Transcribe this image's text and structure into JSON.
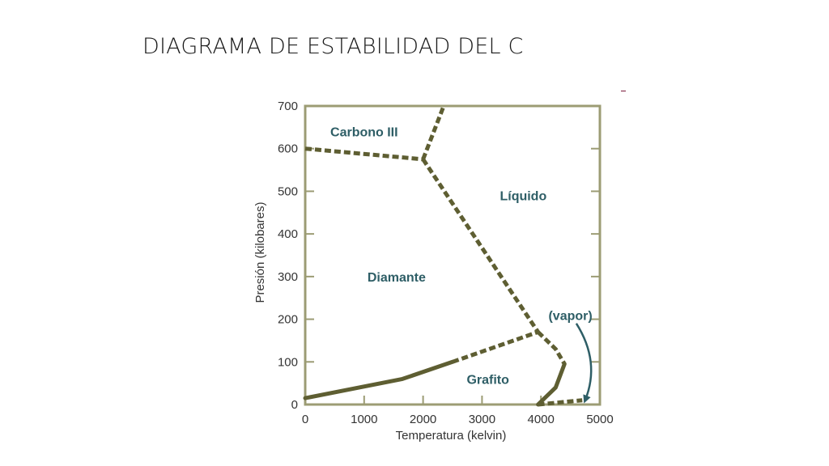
{
  "slide": {
    "title": "DIAGRAMA DE ESTABILIDAD DEL C"
  },
  "chart_data": {
    "type": "phase-diagram",
    "xlabel": "Temperatura (kelvin)",
    "ylabel": "Presión (kilobares)",
    "xlim": [
      0,
      5000
    ],
    "ylim": [
      0,
      700
    ],
    "x_ticks": [
      "0",
      "1000",
      "2000",
      "3000",
      "4000",
      "5000"
    ],
    "y_ticks": [
      "0",
      "100",
      "200",
      "300",
      "400",
      "500",
      "600",
      "700"
    ],
    "regions": [
      {
        "name": "Carbono III",
        "x": 1000,
        "y": 640
      },
      {
        "name": "Líquido",
        "x": 3700,
        "y": 490
      },
      {
        "name": "Diamante",
        "x": 1550,
        "y": 300
      },
      {
        "name": "(vapor)",
        "x": 4500,
        "y": 210
      },
      {
        "name": "Grafito",
        "x": 3100,
        "y": 60
      }
    ],
    "boundaries": [
      {
        "style": "solid",
        "points": [
          [
            0,
            15
          ],
          [
            1650,
            60
          ],
          [
            2500,
            100
          ]
        ]
      },
      {
        "style": "dashed",
        "points": [
          [
            2500,
            100
          ],
          [
            3950,
            170
          ]
        ]
      },
      {
        "style": "dashed",
        "points": [
          [
            0,
            600
          ],
          [
            2000,
            575
          ]
        ]
      },
      {
        "style": "dashed",
        "points": [
          [
            2000,
            575
          ],
          [
            2350,
            700
          ]
        ]
      },
      {
        "style": "dashed",
        "points": [
          [
            2000,
            575
          ],
          [
            3950,
            170
          ]
        ]
      },
      {
        "style": "dashed",
        "points": [
          [
            3950,
            170
          ],
          [
            4250,
            130
          ],
          [
            4400,
            95
          ]
        ]
      },
      {
        "style": "solid",
        "points": [
          [
            4400,
            95
          ],
          [
            4250,
            40
          ],
          [
            3950,
            0
          ]
        ]
      },
      {
        "style": "dashed",
        "points": [
          [
            3950,
            0
          ],
          [
            4700,
            10
          ]
        ]
      }
    ],
    "annotation_arrow": {
      "from": [
        4600,
        190
      ],
      "to": [
        4750,
        10
      ]
    },
    "colors": {
      "boundary": "#5e5e32",
      "frame": "#9c9c74",
      "region_label": "#2e5e66"
    },
    "grid": false
  }
}
